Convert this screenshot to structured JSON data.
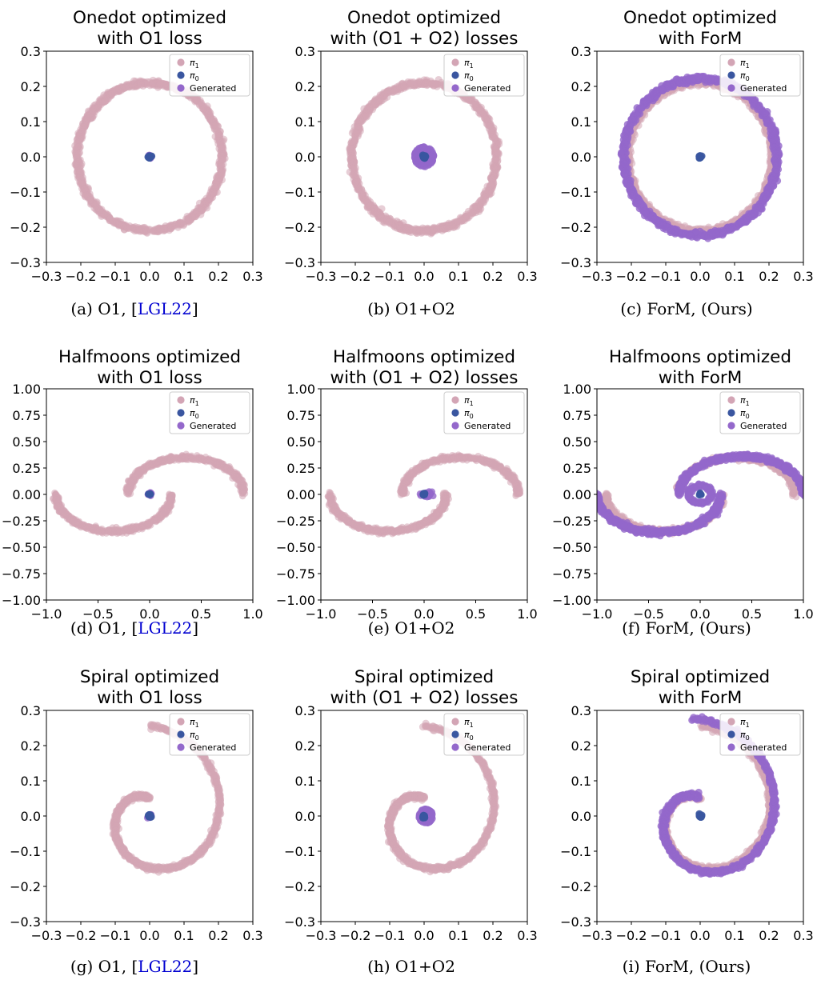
{
  "legend_labels": {
    "pi1": "π",
    "pi1_sub": "1",
    "pi0": "π",
    "pi0_sub": "0",
    "generated": "Generated"
  },
  "colors": {
    "pi1": "#d3a5b5",
    "pi0": "#3a56a0",
    "generated": "#9468cb",
    "axis": "#000000",
    "citation": "#0000d0"
  },
  "rows": [
    {
      "dataset": "onedot",
      "ylim": [
        -0.3,
        0.3
      ],
      "xlim": [
        -0.3,
        0.3
      ],
      "yticks": [
        "0.3",
        "0.2",
        "0.1",
        "0.0",
        "−0.1",
        "−0.2",
        "−0.3"
      ],
      "xticks": [
        "−0.3",
        "−0.2",
        "−0.1",
        "0.0",
        "0.1",
        "0.2",
        "0.3"
      ],
      "panels": [
        {
          "title": [
            "Onedot optimized",
            "with O1 loss"
          ],
          "caption": {
            "prefix": "(a) O1, [",
            "cite": "LGL22",
            "suffix": "]"
          }
        },
        {
          "title": [
            "Onedot optimized",
            "with (O1 + O2) losses"
          ],
          "caption": {
            "prefix": "(b) O1+O2",
            "cite": "",
            "suffix": ""
          }
        },
        {
          "title": [
            "Onedot optimized",
            "with ForM"
          ],
          "caption": {
            "prefix": "(c) ForM, (Ours)",
            "cite": "",
            "suffix": ""
          }
        }
      ]
    },
    {
      "dataset": "halfmoons",
      "ylim": [
        -1.0,
        1.0
      ],
      "xlim": [
        -1.0,
        1.0
      ],
      "yticks": [
        "1.00",
        "0.75",
        "0.50",
        "0.25",
        "0.00",
        "−0.25",
        "−0.50",
        "−0.75",
        "−1.00"
      ],
      "xticks": [
        "−1.0",
        "−0.5",
        "0.0",
        "0.5",
        "1.0"
      ],
      "panels": [
        {
          "title": [
            "Halfmoons optimized",
            "with O1 loss"
          ],
          "caption": {
            "prefix": "(d) O1, [",
            "cite": "LGL22",
            "suffix": "]"
          }
        },
        {
          "title": [
            "Halfmoons optimized",
            "with (O1 + O2) losses"
          ],
          "caption": {
            "prefix": "(e) O1+O2",
            "cite": "",
            "suffix": ""
          }
        },
        {
          "title": [
            "Halfmoons optimized",
            "with ForM"
          ],
          "caption": {
            "prefix": "(f) ForM, (Ours)",
            "cite": "",
            "suffix": ""
          }
        }
      ]
    },
    {
      "dataset": "spiral",
      "ylim": [
        -0.3,
        0.3
      ],
      "xlim": [
        -0.3,
        0.3
      ],
      "yticks": [
        "0.3",
        "0.2",
        "0.1",
        "0.0",
        "−0.1",
        "−0.2",
        "−0.3"
      ],
      "xticks": [
        "−0.3",
        "−0.2",
        "−0.1",
        "0.0",
        "0.1",
        "0.2",
        "0.3"
      ],
      "panels": [
        {
          "title": [
            "Spiral optimized",
            "with O1 loss"
          ],
          "caption": {
            "prefix": "(g) O1, [",
            "cite": "LGL22",
            "suffix": "]"
          }
        },
        {
          "title": [
            "Spiral optimized",
            "with (O1 + O2) losses"
          ],
          "caption": {
            "prefix": "(h) O1+O2",
            "cite": "",
            "suffix": ""
          }
        },
        {
          "title": [
            "Spiral optimized",
            "with ForM"
          ],
          "caption": {
            "prefix": "(i) ForM, (Ours)",
            "cite": "",
            "suffix": ""
          }
        }
      ]
    }
  ],
  "chart_data": [
    {
      "type": "scatter",
      "title": "Onedot optimized with O1 loss",
      "xlim": [
        -0.3,
        0.3
      ],
      "ylim": [
        -0.3,
        0.3
      ],
      "grid": false,
      "legend": "top-right",
      "series": [
        {
          "name": "π1",
          "shape": "circle",
          "center": [
            0,
            0
          ],
          "radius": 0.21
        },
        {
          "name": "π0",
          "shape": "point",
          "center": [
            0,
            0
          ]
        },
        {
          "name": "Generated",
          "shape": "point",
          "center": [
            0,
            0
          ],
          "radius": 0.008
        }
      ]
    },
    {
      "type": "scatter",
      "title": "Onedot optimized with (O1 + O2) losses",
      "xlim": [
        -0.3,
        0.3
      ],
      "ylim": [
        -0.3,
        0.3
      ],
      "grid": false,
      "legend": "top-right",
      "series": [
        {
          "name": "π1",
          "shape": "circle",
          "center": [
            0,
            0
          ],
          "radius": 0.21
        },
        {
          "name": "π0",
          "shape": "point",
          "center": [
            0,
            0
          ]
        },
        {
          "name": "Generated",
          "shape": "blob",
          "center": [
            0,
            0
          ],
          "radius": 0.03
        }
      ]
    },
    {
      "type": "scatter",
      "title": "Onedot optimized with ForM",
      "xlim": [
        -0.3,
        0.3
      ],
      "ylim": [
        -0.3,
        0.3
      ],
      "grid": false,
      "legend": "top-right",
      "series": [
        {
          "name": "π1",
          "shape": "circle",
          "center": [
            0,
            0
          ],
          "radius": 0.21
        },
        {
          "name": "π0",
          "shape": "point",
          "center": [
            0,
            0
          ]
        },
        {
          "name": "Generated",
          "shape": "circle",
          "center": [
            0,
            0
          ],
          "radius": 0.22
        }
      ]
    },
    {
      "type": "scatter",
      "title": "Halfmoons optimized with O1 loss",
      "xlim": [
        -1.0,
        1.0
      ],
      "ylim": [
        -1.0,
        1.0
      ],
      "grid": false,
      "legend": "top-right",
      "series": [
        {
          "name": "π1",
          "shape": "two moons",
          "centers": [
            [
              0.35,
              0
            ],
            [
              -0.35,
              0
            ]
          ],
          "radius": 0.56
        },
        {
          "name": "π0",
          "shape": "point",
          "center": [
            0,
            0
          ]
        },
        {
          "name": "Generated",
          "shape": "point",
          "center": [
            0,
            0
          ]
        }
      ]
    },
    {
      "type": "scatter",
      "title": "Halfmoons optimized with (O1 + O2) losses",
      "xlim": [
        -1.0,
        1.0
      ],
      "ylim": [
        -1.0,
        1.0
      ],
      "grid": false,
      "legend": "top-right",
      "series": [
        {
          "name": "π1",
          "shape": "two moons",
          "centers": [
            [
              0.35,
              0
            ],
            [
              -0.35,
              0
            ]
          ],
          "radius": 0.56
        },
        {
          "name": "π0",
          "shape": "point",
          "center": [
            0,
            0
          ]
        },
        {
          "name": "Generated",
          "shape": "point",
          "center": [
            0.02,
            0
          ]
        }
      ]
    },
    {
      "type": "scatter",
      "title": "Halfmoons optimized with ForM",
      "xlim": [
        -1.0,
        1.0
      ],
      "ylim": [
        -1.0,
        1.0
      ],
      "grid": false,
      "legend": "top-right",
      "series": [
        {
          "name": "π1",
          "shape": "two moons",
          "centers": [
            [
              0.35,
              0
            ],
            [
              -0.35,
              0
            ]
          ],
          "radius": 0.56
        },
        {
          "name": "π0",
          "shape": "point",
          "center": [
            0,
            0
          ]
        },
        {
          "name": "Generated",
          "shape": "spiral pair"
        }
      ]
    },
    {
      "type": "scatter",
      "title": "Spiral optimized with O1 loss",
      "xlim": [
        -0.3,
        0.3
      ],
      "ylim": [
        -0.3,
        0.3
      ],
      "grid": false,
      "legend": "top-right",
      "series": [
        {
          "name": "π1",
          "shape": "spiral"
        },
        {
          "name": "π0",
          "shape": "point",
          "center": [
            0,
            0
          ]
        },
        {
          "name": "Generated",
          "shape": "point",
          "center": [
            0,
            0
          ]
        }
      ]
    },
    {
      "type": "scatter",
      "title": "Spiral optimized with (O1 + O2) losses",
      "xlim": [
        -0.3,
        0.3
      ],
      "ylim": [
        -0.3,
        0.3
      ],
      "grid": false,
      "legend": "top-right",
      "series": [
        {
          "name": "π1",
          "shape": "spiral"
        },
        {
          "name": "π0",
          "shape": "point",
          "center": [
            0,
            0
          ]
        },
        {
          "name": "Generated",
          "shape": "blob",
          "center": [
            0.005,
            0
          ],
          "radius": 0.02
        }
      ]
    },
    {
      "type": "scatter",
      "title": "Spiral optimized with ForM",
      "xlim": [
        -0.3,
        0.3
      ],
      "ylim": [
        -0.3,
        0.3
      ],
      "grid": false,
      "legend": "top-right",
      "series": [
        {
          "name": "π1",
          "shape": "spiral"
        },
        {
          "name": "π0",
          "shape": "point",
          "center": [
            0,
            0
          ]
        },
        {
          "name": "Generated",
          "shape": "spiral"
        }
      ]
    }
  ]
}
